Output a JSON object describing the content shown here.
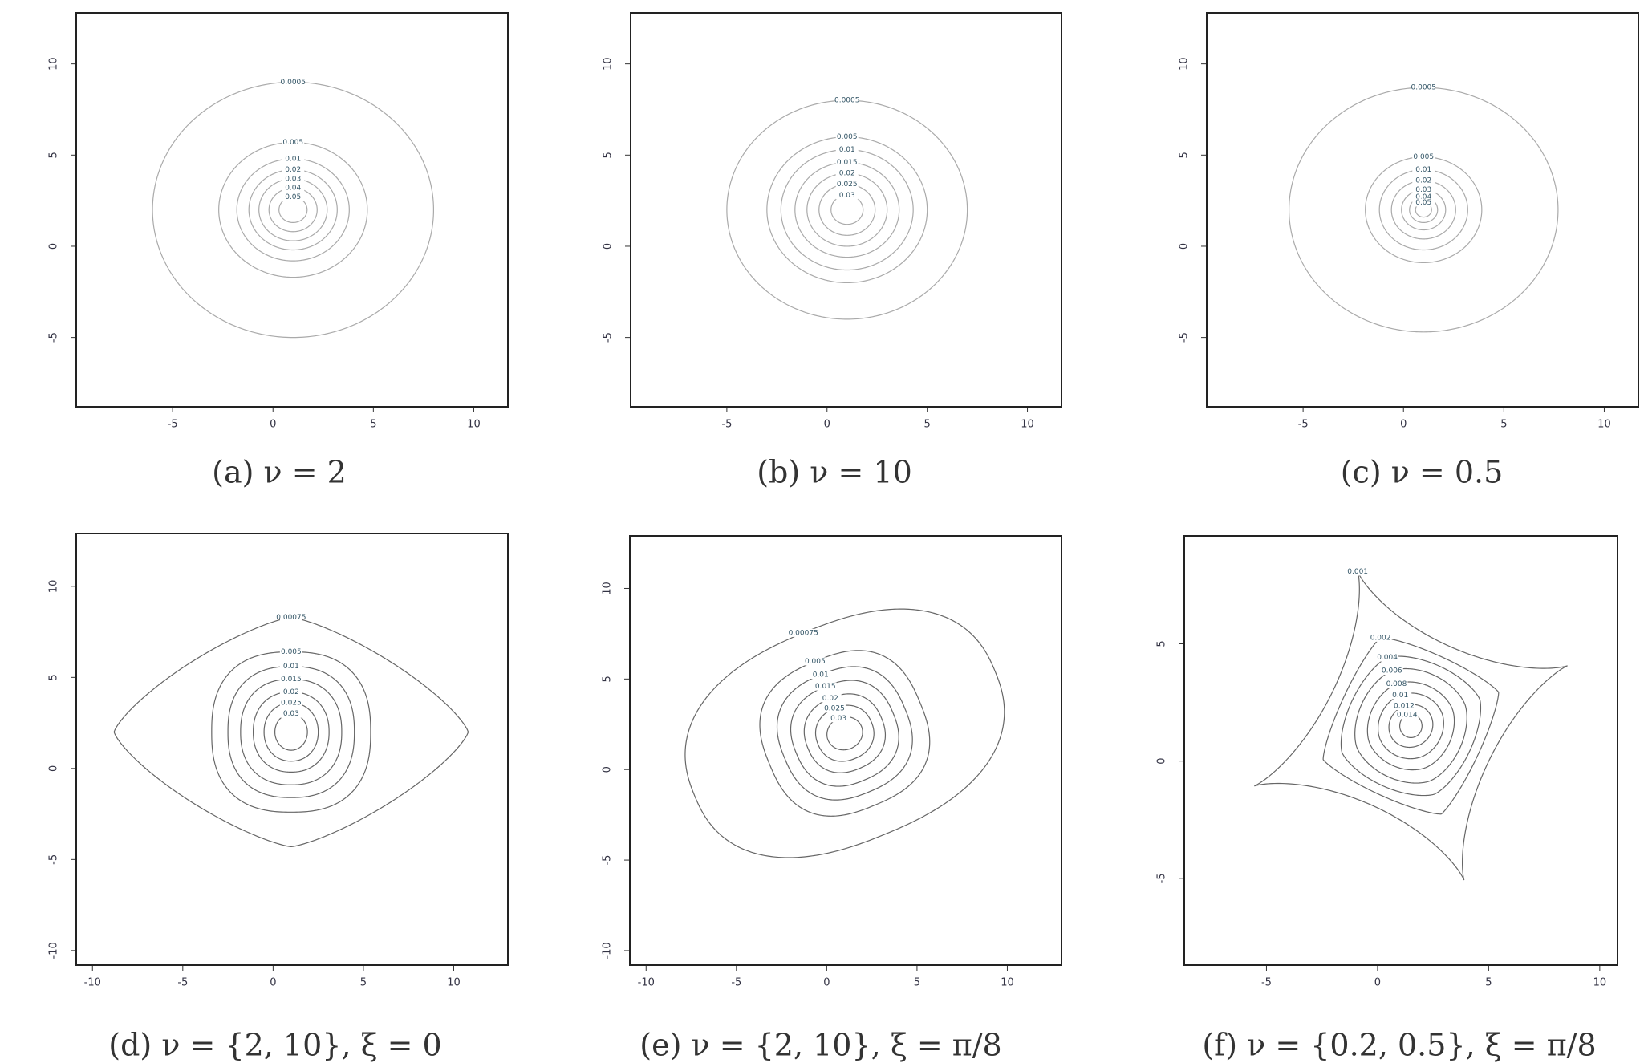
{
  "chart_data": [
    {
      "type": "contour",
      "caption": "(a) ν = 2",
      "center": [
        1,
        2
      ],
      "xlim": [
        -9.8,
        11.7
      ],
      "ylim": [
        -8.8,
        12.8
      ],
      "xticks": [
        -5,
        0,
        5,
        10
      ],
      "yticks": [
        -5,
        0,
        5,
        10
      ],
      "levels": [
        0.0005,
        0.005,
        0.01,
        0.02,
        0.03,
        0.04,
        0.05
      ],
      "rx": [
        7,
        3.7,
        2.8,
        2.2,
        1.7,
        1.2,
        0.7
      ],
      "ry": [
        7,
        3.7,
        2.8,
        2.2,
        1.7,
        1.2,
        0.7
      ],
      "power": [
        2,
        2,
        2,
        2,
        2,
        2,
        2
      ],
      "rotation": 0,
      "color": "#aaaaaa"
    },
    {
      "type": "contour",
      "caption": "(b) ν = 10",
      "center": [
        1,
        2
      ],
      "xlim": [
        -9.8,
        11.7
      ],
      "ylim": [
        -8.8,
        12.8
      ],
      "xticks": [
        -5,
        0,
        5,
        10
      ],
      "yticks": [
        -5,
        0,
        5,
        10
      ],
      "levels": [
        0.0005,
        0.005,
        0.01,
        0.015,
        0.02,
        0.025,
        0.03
      ],
      "rx": [
        6,
        4,
        3.3,
        2.6,
        2,
        1.4,
        0.8
      ],
      "ry": [
        6,
        4,
        3.3,
        2.6,
        2,
        1.4,
        0.8
      ],
      "power": [
        2,
        2,
        2,
        2,
        2,
        2,
        2
      ],
      "rotation": 0,
      "color": "#aaaaaa"
    },
    {
      "type": "contour",
      "caption": "(c) ν = 0.5",
      "center": [
        1,
        2
      ],
      "xlim": [
        -9.8,
        11.7
      ],
      "ylim": [
        -8.8,
        12.8
      ],
      "xticks": [
        -5,
        0,
        5,
        10
      ],
      "yticks": [
        -5,
        0,
        5,
        10
      ],
      "levels": [
        0.0005,
        0.005,
        0.01,
        0.02,
        0.03,
        0.04,
        0.05
      ],
      "rx": [
        6.7,
        2.9,
        2.2,
        1.6,
        1.1,
        0.7,
        0.4
      ],
      "ry": [
        6.7,
        2.9,
        2.2,
        1.6,
        1.1,
        0.7,
        0.4
      ],
      "power": [
        2,
        2,
        2,
        2,
        2,
        2,
        2
      ],
      "rotation": 0,
      "color": "#aaaaaa"
    },
    {
      "type": "contour",
      "caption": "(d) ν = {2, 10}, ξ = 0",
      "center": [
        1,
        2
      ],
      "xlim": [
        -10.9,
        13
      ],
      "ylim": [
        -10.8,
        12.9
      ],
      "xticks": [
        -10,
        -5,
        0,
        5,
        10
      ],
      "yticks": [
        -10,
        -5,
        0,
        5,
        10
      ],
      "levels": [
        0.00075,
        0.005,
        0.01,
        0.015,
        0.02,
        0.025,
        0.03
      ],
      "rx": [
        9.8,
        4.4,
        3.5,
        2.8,
        2.1,
        1.5,
        0.9
      ],
      "ry": [
        6.3,
        4.4,
        3.6,
        2.9,
        2.2,
        1.6,
        1
      ],
      "power": [
        1.3,
        2.5,
        2.4,
        2.3,
        2.2,
        2.1,
        2
      ],
      "rotation": 0,
      "color": "#666666"
    },
    {
      "type": "contour",
      "caption": "(e) ν = {2, 10}, ξ = π/8",
      "center": [
        1,
        2
      ],
      "xlim": [
        -10.9,
        13
      ],
      "ylim": [
        -10.8,
        12.9
      ],
      "xticks": [
        -10,
        -5,
        0,
        5,
        10
      ],
      "yticks": [
        -10,
        -5,
        0,
        5,
        10
      ],
      "levels": [
        0.00075,
        0.005,
        0.01,
        0.015,
        0.02,
        0.025,
        0.03
      ],
      "rx": [
        9,
        4.5,
        3.6,
        2.9,
        2.2,
        1.6,
        1
      ],
      "ry": [
        6,
        4.3,
        3.5,
        2.8,
        2.1,
        1.5,
        0.9
      ],
      "power": [
        2.4,
        2.6,
        2.5,
        2.4,
        2.3,
        2.2,
        2
      ],
      "rotation": 22.5,
      "color": "#666666"
    },
    {
      "type": "contour",
      "caption": "(f) ν = {0.2, 0.5}, ξ = π/8",
      "center": [
        1.5,
        1.5
      ],
      "xlim": [
        -8.7,
        10.8
      ],
      "ylim": [
        -8.7,
        9.6
      ],
      "xticks": [
        -5,
        0,
        5,
        10
      ],
      "yticks": [
        -5,
        0,
        5
      ],
      "levels": [
        0.001,
        0.002,
        0.004,
        0.006,
        0.008,
        0.01,
        0.012,
        0.014
      ],
      "rx": [
        7.5,
        4.2,
        3.3,
        2.6,
        2,
        1.5,
        1,
        0.5
      ],
      "ry": [
        7,
        4,
        3.1,
        2.5,
        1.9,
        1.4,
        0.9,
        0.5
      ],
      "power": [
        0.7,
        1.2,
        1.5,
        1.7,
        1.8,
        1.9,
        2,
        2
      ],
      "rotation": 20,
      "color": "#666666"
    }
  ]
}
